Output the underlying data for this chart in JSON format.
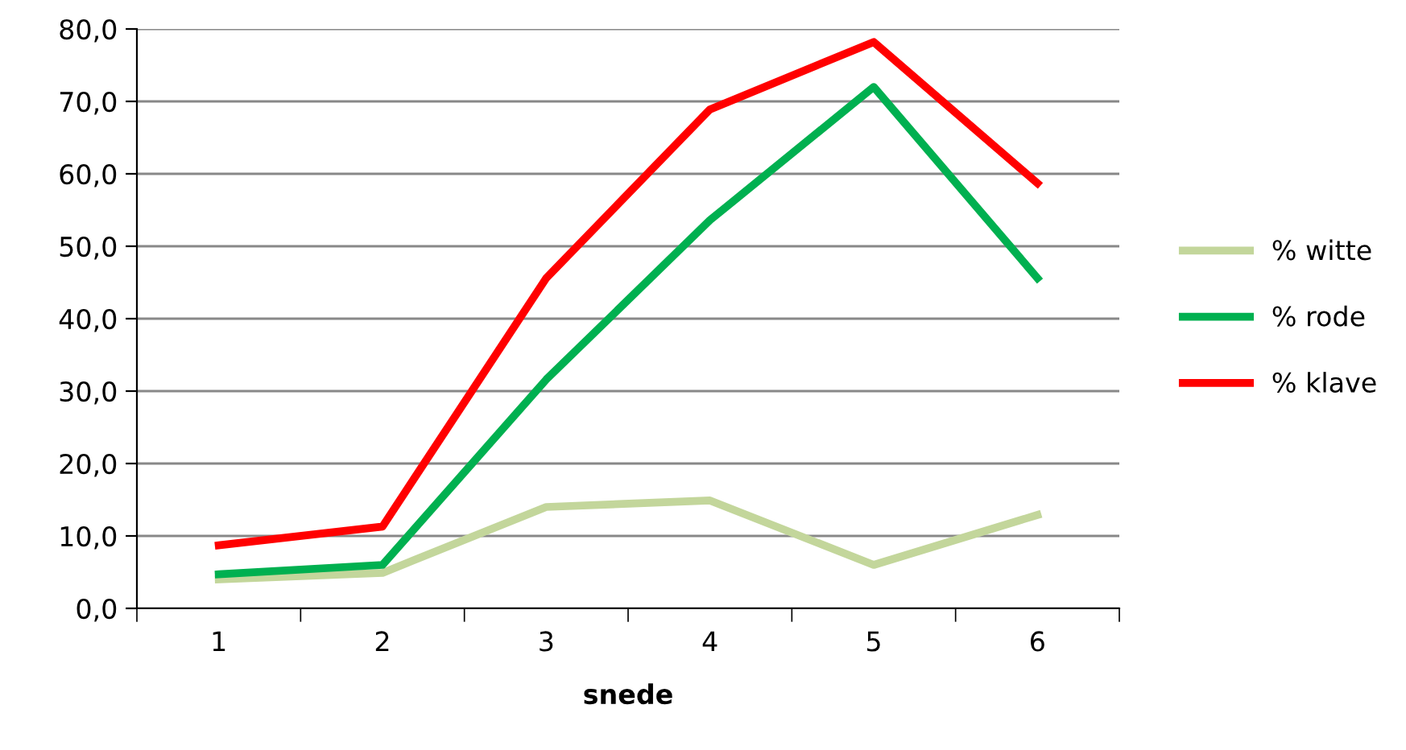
{
  "chart_data": {
    "type": "line",
    "xlabel": "snede",
    "categories": [
      "1",
      "2",
      "3",
      "4",
      "5",
      "6"
    ],
    "series": [
      {
        "name": "% witte",
        "color": "#c3d69b",
        "values": [
          4.0,
          4.9,
          14.0,
          14.9,
          6.0,
          12.9
        ]
      },
      {
        "name": "% rode",
        "color": "#00b050",
        "values": [
          4.7,
          6.0,
          31.6,
          53.6,
          72.0,
          45.6
        ]
      },
      {
        "name": "% klave",
        "color": "#ff0000",
        "values": [
          8.7,
          11.3,
          45.6,
          68.9,
          78.2,
          58.7
        ]
      }
    ],
    "ylim": [
      0,
      80
    ],
    "yticks": [
      {
        "value": 0,
        "label": "0,0"
      },
      {
        "value": 10,
        "label": "10,0"
      },
      {
        "value": 20,
        "label": "20,0"
      },
      {
        "value": 30,
        "label": "30,0"
      },
      {
        "value": 40,
        "label": "40,0"
      },
      {
        "value": 50,
        "label": "50,0"
      },
      {
        "value": 60,
        "label": "60,0"
      },
      {
        "value": 70,
        "label": "70,0"
      },
      {
        "value": 80,
        "label": "80,0"
      }
    ],
    "grid": "y",
    "legend": "right",
    "marker": "none",
    "line_style": "solid"
  }
}
